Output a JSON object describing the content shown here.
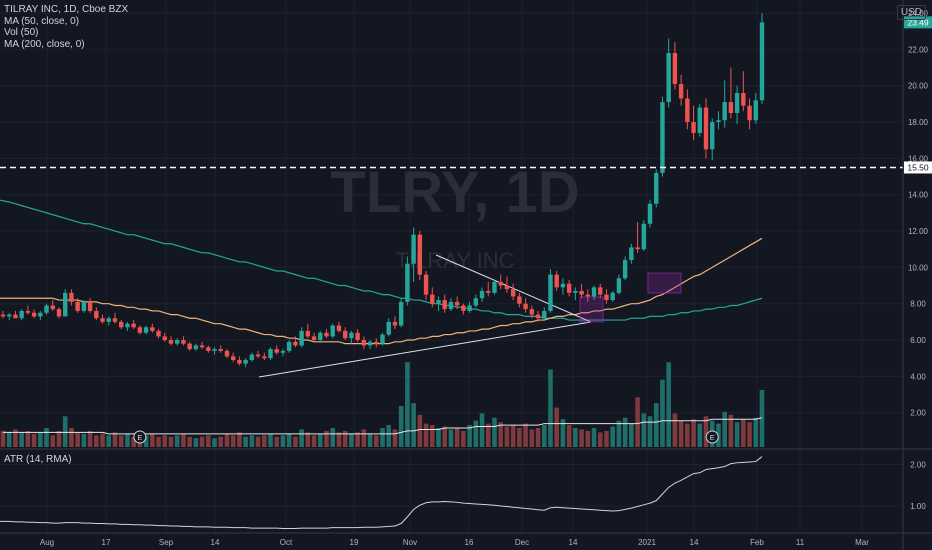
{
  "header": {
    "symbol_line": "TILRAY INC, 1D, Cboe BZX",
    "indicators": [
      "MA (50, close, 0)",
      "Vol (50)",
      "MA (200, close, 0)"
    ],
    "currency": "USD"
  },
  "watermark": {
    "ticker": "TLRY, 1D",
    "name": "TILRAY INC"
  },
  "colors": {
    "up": "#26a69a",
    "down": "#ef5350",
    "ma50": "#f0b27a",
    "ma200": "#26a69a",
    "atr": "#d1d4dc",
    "vol_up": "#1f6e69",
    "vol_down": "#7e3a3c"
  },
  "price_tag": {
    "value": "23.49"
  },
  "level_tag": {
    "value": "15.50"
  },
  "chart_data": {
    "type": "candlestick",
    "y_ticks": [
      "24.00",
      "22.00",
      "20.00",
      "18.00",
      "16.00",
      "14.00",
      "12.00",
      "10.00",
      "8.00",
      "6.00",
      "4.00",
      "2.00"
    ],
    "ylim": [
      0,
      24.5
    ],
    "x_ticks": [
      "Aug",
      "17",
      "Sep",
      "14",
      "Oct",
      "19",
      "Nov",
      "16",
      "Dec",
      "14",
      "2021",
      "14",
      "Feb",
      "11",
      "Mar"
    ],
    "horizontal_level": 15.5,
    "last_price": 23.49,
    "earnings_markers": [
      "E",
      "E"
    ],
    "atr": {
      "label": "ATR (14, RMA)",
      "y_ticks": [
        "2.00",
        "1.00"
      ],
      "ylim": [
        0.4,
        2.3
      ]
    },
    "ohlc": [
      [
        7.4,
        7.6,
        7.2,
        7.3
      ],
      [
        7.3,
        7.5,
        7.1,
        7.4
      ],
      [
        7.4,
        7.6,
        7.2,
        7.2
      ],
      [
        7.2,
        7.7,
        7.1,
        7.6
      ],
      [
        7.6,
        7.9,
        7.4,
        7.5
      ],
      [
        7.5,
        7.7,
        7.2,
        7.3
      ],
      [
        7.3,
        7.6,
        7.1,
        7.5
      ],
      [
        7.5,
        8.0,
        7.4,
        7.9
      ],
      [
        7.9,
        8.2,
        7.6,
        7.7
      ],
      [
        7.7,
        7.8,
        7.2,
        7.3
      ],
      [
        7.3,
        8.8,
        7.3,
        8.6
      ],
      [
        8.6,
        8.8,
        7.9,
        8.1
      ],
      [
        8.1,
        8.3,
        7.5,
        7.6
      ],
      [
        7.6,
        8.2,
        7.5,
        8.1
      ],
      [
        8.1,
        8.3,
        7.5,
        7.6
      ],
      [
        7.6,
        7.8,
        7.1,
        7.2
      ],
      [
        7.2,
        7.4,
        6.9,
        7.0
      ],
      [
        7.0,
        7.3,
        6.8,
        7.2
      ],
      [
        7.2,
        7.5,
        6.9,
        7.0
      ],
      [
        7.0,
        7.1,
        6.6,
        6.7
      ],
      [
        6.7,
        7.0,
        6.5,
        6.9
      ],
      [
        6.9,
        7.1,
        6.6,
        6.7
      ],
      [
        6.7,
        6.8,
        6.3,
        6.4
      ],
      [
        6.4,
        6.8,
        6.3,
        6.7
      ],
      [
        6.7,
        6.9,
        6.4,
        6.5
      ],
      [
        6.5,
        6.6,
        6.1,
        6.2
      ],
      [
        6.2,
        6.4,
        5.9,
        6.0
      ],
      [
        6.0,
        6.2,
        5.7,
        5.8
      ],
      [
        5.8,
        6.1,
        5.7,
        6.0
      ],
      [
        6.0,
        6.2,
        5.7,
        5.8
      ],
      [
        5.8,
        5.9,
        5.4,
        5.5
      ],
      [
        5.5,
        5.8,
        5.4,
        5.7
      ],
      [
        5.7,
        5.9,
        5.5,
        5.6
      ],
      [
        5.6,
        5.7,
        5.3,
        5.4
      ],
      [
        5.4,
        5.6,
        5.2,
        5.5
      ],
      [
        5.5,
        5.7,
        5.3,
        5.4
      ],
      [
        5.4,
        5.5,
        5.0,
        5.1
      ],
      [
        5.1,
        5.3,
        4.8,
        4.9
      ],
      [
        4.9,
        5.1,
        4.6,
        4.7
      ],
      [
        4.7,
        5.0,
        4.5,
        4.9
      ],
      [
        4.9,
        5.3,
        4.8,
        5.2
      ],
      [
        5.2,
        5.4,
        5.0,
        5.1
      ],
      [
        5.1,
        5.3,
        4.9,
        5.0
      ],
      [
        5.0,
        5.6,
        4.9,
        5.5
      ],
      [
        5.5,
        5.7,
        5.2,
        5.3
      ],
      [
        5.3,
        5.5,
        5.1,
        5.4
      ],
      [
        5.4,
        6.0,
        5.3,
        5.9
      ],
      [
        5.9,
        6.2,
        5.6,
        5.7
      ],
      [
        5.7,
        6.7,
        5.6,
        6.5
      ],
      [
        6.5,
        6.9,
        6.1,
        6.2
      ],
      [
        6.2,
        6.4,
        5.9,
        6.0
      ],
      [
        6.0,
        6.5,
        5.9,
        6.4
      ],
      [
        6.4,
        6.6,
        6.1,
        6.2
      ],
      [
        6.2,
        6.9,
        6.1,
        6.8
      ],
      [
        6.8,
        7.0,
        6.4,
        6.5
      ],
      [
        6.5,
        6.7,
        6.0,
        6.1
      ],
      [
        6.1,
        6.5,
        5.8,
        6.4
      ],
      [
        6.4,
        6.6,
        5.9,
        6.0
      ],
      [
        6.0,
        6.2,
        5.5,
        5.7
      ],
      [
        5.7,
        6.0,
        5.5,
        5.9
      ],
      [
        5.9,
        6.1,
        5.6,
        5.8
      ],
      [
        5.8,
        6.4,
        5.7,
        6.3
      ],
      [
        6.3,
        7.2,
        6.2,
        7.0
      ],
      [
        7.0,
        7.3,
        6.6,
        6.8
      ],
      [
        6.8,
        8.3,
        6.7,
        8.1
      ],
      [
        8.1,
        10.6,
        7.9,
        10.2
      ],
      [
        10.2,
        12.2,
        9.2,
        11.8
      ],
      [
        11.8,
        12.0,
        9.3,
        9.6
      ],
      [
        9.6,
        9.8,
        8.2,
        8.5
      ],
      [
        8.5,
        8.9,
        7.8,
        8.0
      ],
      [
        8.0,
        8.4,
        7.6,
        8.2
      ],
      [
        8.2,
        8.5,
        7.5,
        7.7
      ],
      [
        7.7,
        8.3,
        7.6,
        8.1
      ],
      [
        8.1,
        8.4,
        7.7,
        7.9
      ],
      [
        7.9,
        8.0,
        7.4,
        7.6
      ],
      [
        7.6,
        8.1,
        7.5,
        7.9
      ],
      [
        7.9,
        8.5,
        7.8,
        8.3
      ],
      [
        8.3,
        8.9,
        8.1,
        8.7
      ],
      [
        8.7,
        9.2,
        8.4,
        8.6
      ],
      [
        8.6,
        9.3,
        8.5,
        9.2
      ],
      [
        9.2,
        9.6,
        8.8,
        9.0
      ],
      [
        9.0,
        9.5,
        8.6,
        8.8
      ],
      [
        8.8,
        9.1,
        8.2,
        8.4
      ],
      [
        8.4,
        8.6,
        7.8,
        8.0
      ],
      [
        8.0,
        8.3,
        7.5,
        7.7
      ],
      [
        7.7,
        7.9,
        7.2,
        7.4
      ],
      [
        7.4,
        7.6,
        7.0,
        7.2
      ],
      [
        7.2,
        7.8,
        7.1,
        7.6
      ],
      [
        7.6,
        9.9,
        7.5,
        9.6
      ],
      [
        9.6,
        9.8,
        8.7,
        8.9
      ],
      [
        8.9,
        9.4,
        8.5,
        9.1
      ],
      [
        9.1,
        9.3,
        8.4,
        8.6
      ],
      [
        8.6,
        8.9,
        8.2,
        8.7
      ],
      [
        8.7,
        9.1,
        8.3,
        8.5
      ],
      [
        8.5,
        8.8,
        8.1,
        8.4
      ],
      [
        8.4,
        9.0,
        8.2,
        8.9
      ],
      [
        8.9,
        9.1,
        8.3,
        8.5
      ],
      [
        8.5,
        8.8,
        8.0,
        8.2
      ],
      [
        8.2,
        8.7,
        8.1,
        8.6
      ],
      [
        8.6,
        9.6,
        8.5,
        9.4
      ],
      [
        9.4,
        10.6,
        9.3,
        10.4
      ],
      [
        10.4,
        11.3,
        10.2,
        11.1
      ],
      [
        11.1,
        12.5,
        10.8,
        11.0
      ],
      [
        11.0,
        12.6,
        10.9,
        12.4
      ],
      [
        12.4,
        13.7,
        12.2,
        13.5
      ],
      [
        13.5,
        15.4,
        13.3,
        15.2
      ],
      [
        15.2,
        19.4,
        15.0,
        19.1
      ],
      [
        19.1,
        22.6,
        18.8,
        21.8
      ],
      [
        21.8,
        22.4,
        19.8,
        20.1
      ],
      [
        20.1,
        20.6,
        18.9,
        19.3
      ],
      [
        19.3,
        19.8,
        17.6,
        18.0
      ],
      [
        18.0,
        18.9,
        17.0,
        17.4
      ],
      [
        17.4,
        19.0,
        17.2,
        18.8
      ],
      [
        18.8,
        19.3,
        16.0,
        16.5
      ],
      [
        16.5,
        18.2,
        15.9,
        18.0
      ],
      [
        18.0,
        18.6,
        17.6,
        18.1
      ],
      [
        18.1,
        20.3,
        17.7,
        19.1
      ],
      [
        19.1,
        21.0,
        18.2,
        18.5
      ],
      [
        18.5,
        20.0,
        17.9,
        19.6
      ],
      [
        19.6,
        20.8,
        18.6,
        18.9
      ],
      [
        18.9,
        19.3,
        17.6,
        18.1
      ],
      [
        18.1,
        19.6,
        17.9,
        19.2
      ],
      [
        19.2,
        24.0,
        19.0,
        23.49
      ]
    ],
    "volume": [
      1.1,
      1.0,
      1.2,
      1.0,
      1.1,
      0.9,
      1.0,
      1.3,
      0.8,
      1.1,
      2.1,
      1.3,
      1.0,
      0.9,
      1.1,
      0.8,
      0.9,
      0.8,
      1.0,
      0.8,
      0.9,
      0.7,
      0.9,
      0.8,
      0.9,
      0.7,
      0.8,
      0.7,
      0.8,
      0.9,
      0.7,
      0.6,
      0.7,
      0.8,
      0.6,
      0.7,
      0.9,
      0.8,
      1.0,
      0.7,
      0.8,
      0.7,
      0.8,
      0.9,
      0.7,
      0.8,
      0.9,
      0.7,
      1.2,
      1.0,
      0.8,
      0.9,
      1.1,
      1.3,
      1.0,
      1.1,
      0.9,
      1.0,
      1.2,
      0.9,
      0.8,
      1.3,
      1.5,
      1.2,
      2.8,
      5.8,
      3.0,
      2.2,
      1.6,
      1.5,
      1.3,
      1.4,
      1.2,
      1.3,
      1.1,
      1.5,
      1.8,
      2.3,
      1.6,
      2.0,
      1.7,
      1.4,
      1.5,
      1.3,
      1.6,
      1.2,
      1.3,
      1.5,
      5.3,
      2.7,
      1.9,
      1.5,
      1.3,
      1.2,
      1.1,
      1.3,
      1.0,
      1.1,
      1.4,
      1.8,
      2.0,
      1.6,
      3.4,
      2.3,
      2.1,
      3.0,
      4.6,
      5.8,
      2.3,
      1.8,
      1.6,
      1.9,
      1.6,
      2.1,
      1.8,
      1.6,
      2.4,
      2.2,
      1.7,
      1.9,
      1.7,
      2.0,
      3.9
    ],
    "ma50": [
      8.3,
      8.3,
      8.3,
      8.3,
      8.3,
      8.3,
      8.3,
      8.3,
      8.3,
      8.2,
      8.2,
      8.2,
      8.2,
      8.1,
      8.1,
      8.1,
      8.0,
      8.0,
      7.9,
      7.9,
      7.8,
      7.8,
      7.7,
      7.7,
      7.6,
      7.6,
      7.5,
      7.4,
      7.4,
      7.3,
      7.2,
      7.2,
      7.1,
      7.0,
      6.9,
      6.9,
      6.8,
      6.7,
      6.6,
      6.6,
      6.5,
      6.4,
      6.3,
      6.3,
      6.2,
      6.2,
      6.1,
      6.1,
      6.0,
      6.0,
      5.9,
      5.9,
      5.9,
      5.9,
      5.9,
      5.8,
      5.8,
      5.8,
      5.8,
      5.8,
      5.8,
      5.8,
      5.8,
      5.9,
      5.9,
      6.0,
      6.0,
      6.1,
      6.1,
      6.2,
      6.2,
      6.3,
      6.3,
      6.4,
      6.4,
      6.5,
      6.5,
      6.6,
      6.6,
      6.7,
      6.8,
      6.8,
      6.9,
      6.9,
      7.0,
      7.0,
      7.1,
      7.1,
      7.2,
      7.3,
      7.3,
      7.4,
      7.4,
      7.5,
      7.5,
      7.6,
      7.6,
      7.7,
      7.7,
      7.8,
      7.9,
      8.0,
      8.0,
      8.1,
      8.2,
      8.4,
      8.5,
      8.7,
      8.9,
      9.1,
      9.3,
      9.5,
      9.6,
      9.8,
      10.0,
      10.2,
      10.4,
      10.6,
      10.8,
      11.0,
      11.2,
      11.4,
      11.6
    ],
    "ma200": [
      13.7,
      13.6,
      13.5,
      13.4,
      13.3,
      13.2,
      13.1,
      13.0,
      12.9,
      12.8,
      12.7,
      12.6,
      12.5,
      12.4,
      12.4,
      12.3,
      12.2,
      12.1,
      12.0,
      11.9,
      11.8,
      11.8,
      11.7,
      11.6,
      11.5,
      11.4,
      11.3,
      11.3,
      11.2,
      11.1,
      11.0,
      10.9,
      10.8,
      10.8,
      10.7,
      10.6,
      10.5,
      10.4,
      10.3,
      10.3,
      10.2,
      10.1,
      10.0,
      9.9,
      9.8,
      9.8,
      9.7,
      9.6,
      9.5,
      9.4,
      9.4,
      9.3,
      9.2,
      9.1,
      9.0,
      9.0,
      8.9,
      8.8,
      8.7,
      8.7,
      8.6,
      8.5,
      8.5,
      8.4,
      8.3,
      8.3,
      8.2,
      8.2,
      8.1,
      8.0,
      8.0,
      7.9,
      7.9,
      7.8,
      7.8,
      7.7,
      7.7,
      7.6,
      7.6,
      7.5,
      7.5,
      7.4,
      7.4,
      7.4,
      7.3,
      7.3,
      7.3,
      7.2,
      7.2,
      7.2,
      7.2,
      7.1,
      7.1,
      7.1,
      7.1,
      7.1,
      7.1,
      7.1,
      7.1,
      7.1,
      7.1,
      7.2,
      7.2,
      7.2,
      7.3,
      7.3,
      7.3,
      7.4,
      7.4,
      7.5,
      7.5,
      7.6,
      7.6,
      7.7,
      7.7,
      7.8,
      7.8,
      7.9,
      7.9,
      8.0,
      8.1,
      8.2,
      8.3
    ],
    "vol_ma": [
      1.0,
      1.0,
      1.0,
      1.0,
      1.0,
      1.0,
      1.0,
      1.0,
      1.0,
      1.0,
      1.0,
      1.0,
      1.0,
      1.0,
      1.0,
      1.0,
      1.0,
      0.9,
      0.9,
      0.9,
      0.9,
      0.9,
      0.9,
      0.9,
      0.9,
      0.9,
      0.9,
      0.9,
      0.9,
      0.9,
      0.9,
      0.9,
      0.9,
      0.9,
      0.9,
      0.9,
      0.9,
      0.9,
      0.9,
      0.9,
      0.9,
      0.9,
      0.9,
      0.9,
      0.9,
      0.9,
      0.9,
      0.9,
      0.9,
      0.9,
      0.9,
      0.9,
      0.9,
      0.9,
      0.9,
      0.9,
      0.9,
      0.9,
      0.9,
      0.9,
      0.9,
      0.9,
      0.9,
      0.9,
      1.0,
      1.1,
      1.1,
      1.2,
      1.2,
      1.2,
      1.2,
      1.3,
      1.3,
      1.3,
      1.3,
      1.3,
      1.4,
      1.4,
      1.4,
      1.4,
      1.5,
      1.5,
      1.5,
      1.5,
      1.5,
      1.5,
      1.5,
      1.6,
      1.6,
      1.6,
      1.6,
      1.6,
      1.6,
      1.6,
      1.6,
      1.6,
      1.6,
      1.6,
      1.6,
      1.6,
      1.6,
      1.6,
      1.6,
      1.7,
      1.7,
      1.7,
      1.8,
      1.8,
      1.8,
      1.8,
      1.8,
      1.8,
      1.8,
      1.8,
      1.9,
      1.9,
      1.9,
      1.9,
      1.9,
      1.9,
      1.9,
      1.9,
      2.0
    ],
    "atr_values": [
      0.63,
      0.63,
      0.62,
      0.62,
      0.61,
      0.61,
      0.6,
      0.6,
      0.59,
      0.59,
      0.6,
      0.6,
      0.6,
      0.59,
      0.59,
      0.58,
      0.58,
      0.57,
      0.57,
      0.56,
      0.56,
      0.55,
      0.55,
      0.54,
      0.54,
      0.53,
      0.53,
      0.52,
      0.52,
      0.51,
      0.51,
      0.5,
      0.5,
      0.5,
      0.49,
      0.49,
      0.49,
      0.48,
      0.48,
      0.48,
      0.47,
      0.47,
      0.47,
      0.47,
      0.47,
      0.46,
      0.46,
      0.46,
      0.47,
      0.47,
      0.47,
      0.47,
      0.47,
      0.48,
      0.48,
      0.48,
      0.48,
      0.48,
      0.49,
      0.49,
      0.49,
      0.5,
      0.51,
      0.52,
      0.58,
      0.74,
      0.92,
      1.02,
      1.08,
      1.1,
      1.1,
      1.11,
      1.1,
      1.09,
      1.07,
      1.06,
      1.05,
      1.04,
      1.03,
      1.02,
      1.0,
      0.99,
      0.97,
      0.96,
      0.94,
      0.93,
      0.91,
      0.9,
      0.96,
      0.97,
      0.96,
      0.95,
      0.94,
      0.93,
      0.92,
      0.91,
      0.9,
      0.89,
      0.88,
      0.89,
      0.92,
      0.95,
      0.99,
      1.03,
      1.07,
      1.13,
      1.29,
      1.45,
      1.55,
      1.62,
      1.7,
      1.78,
      1.8,
      1.88,
      1.9,
      1.92,
      1.95,
      2.02,
      2.04,
      2.05,
      2.06,
      2.07,
      2.19
    ]
  }
}
